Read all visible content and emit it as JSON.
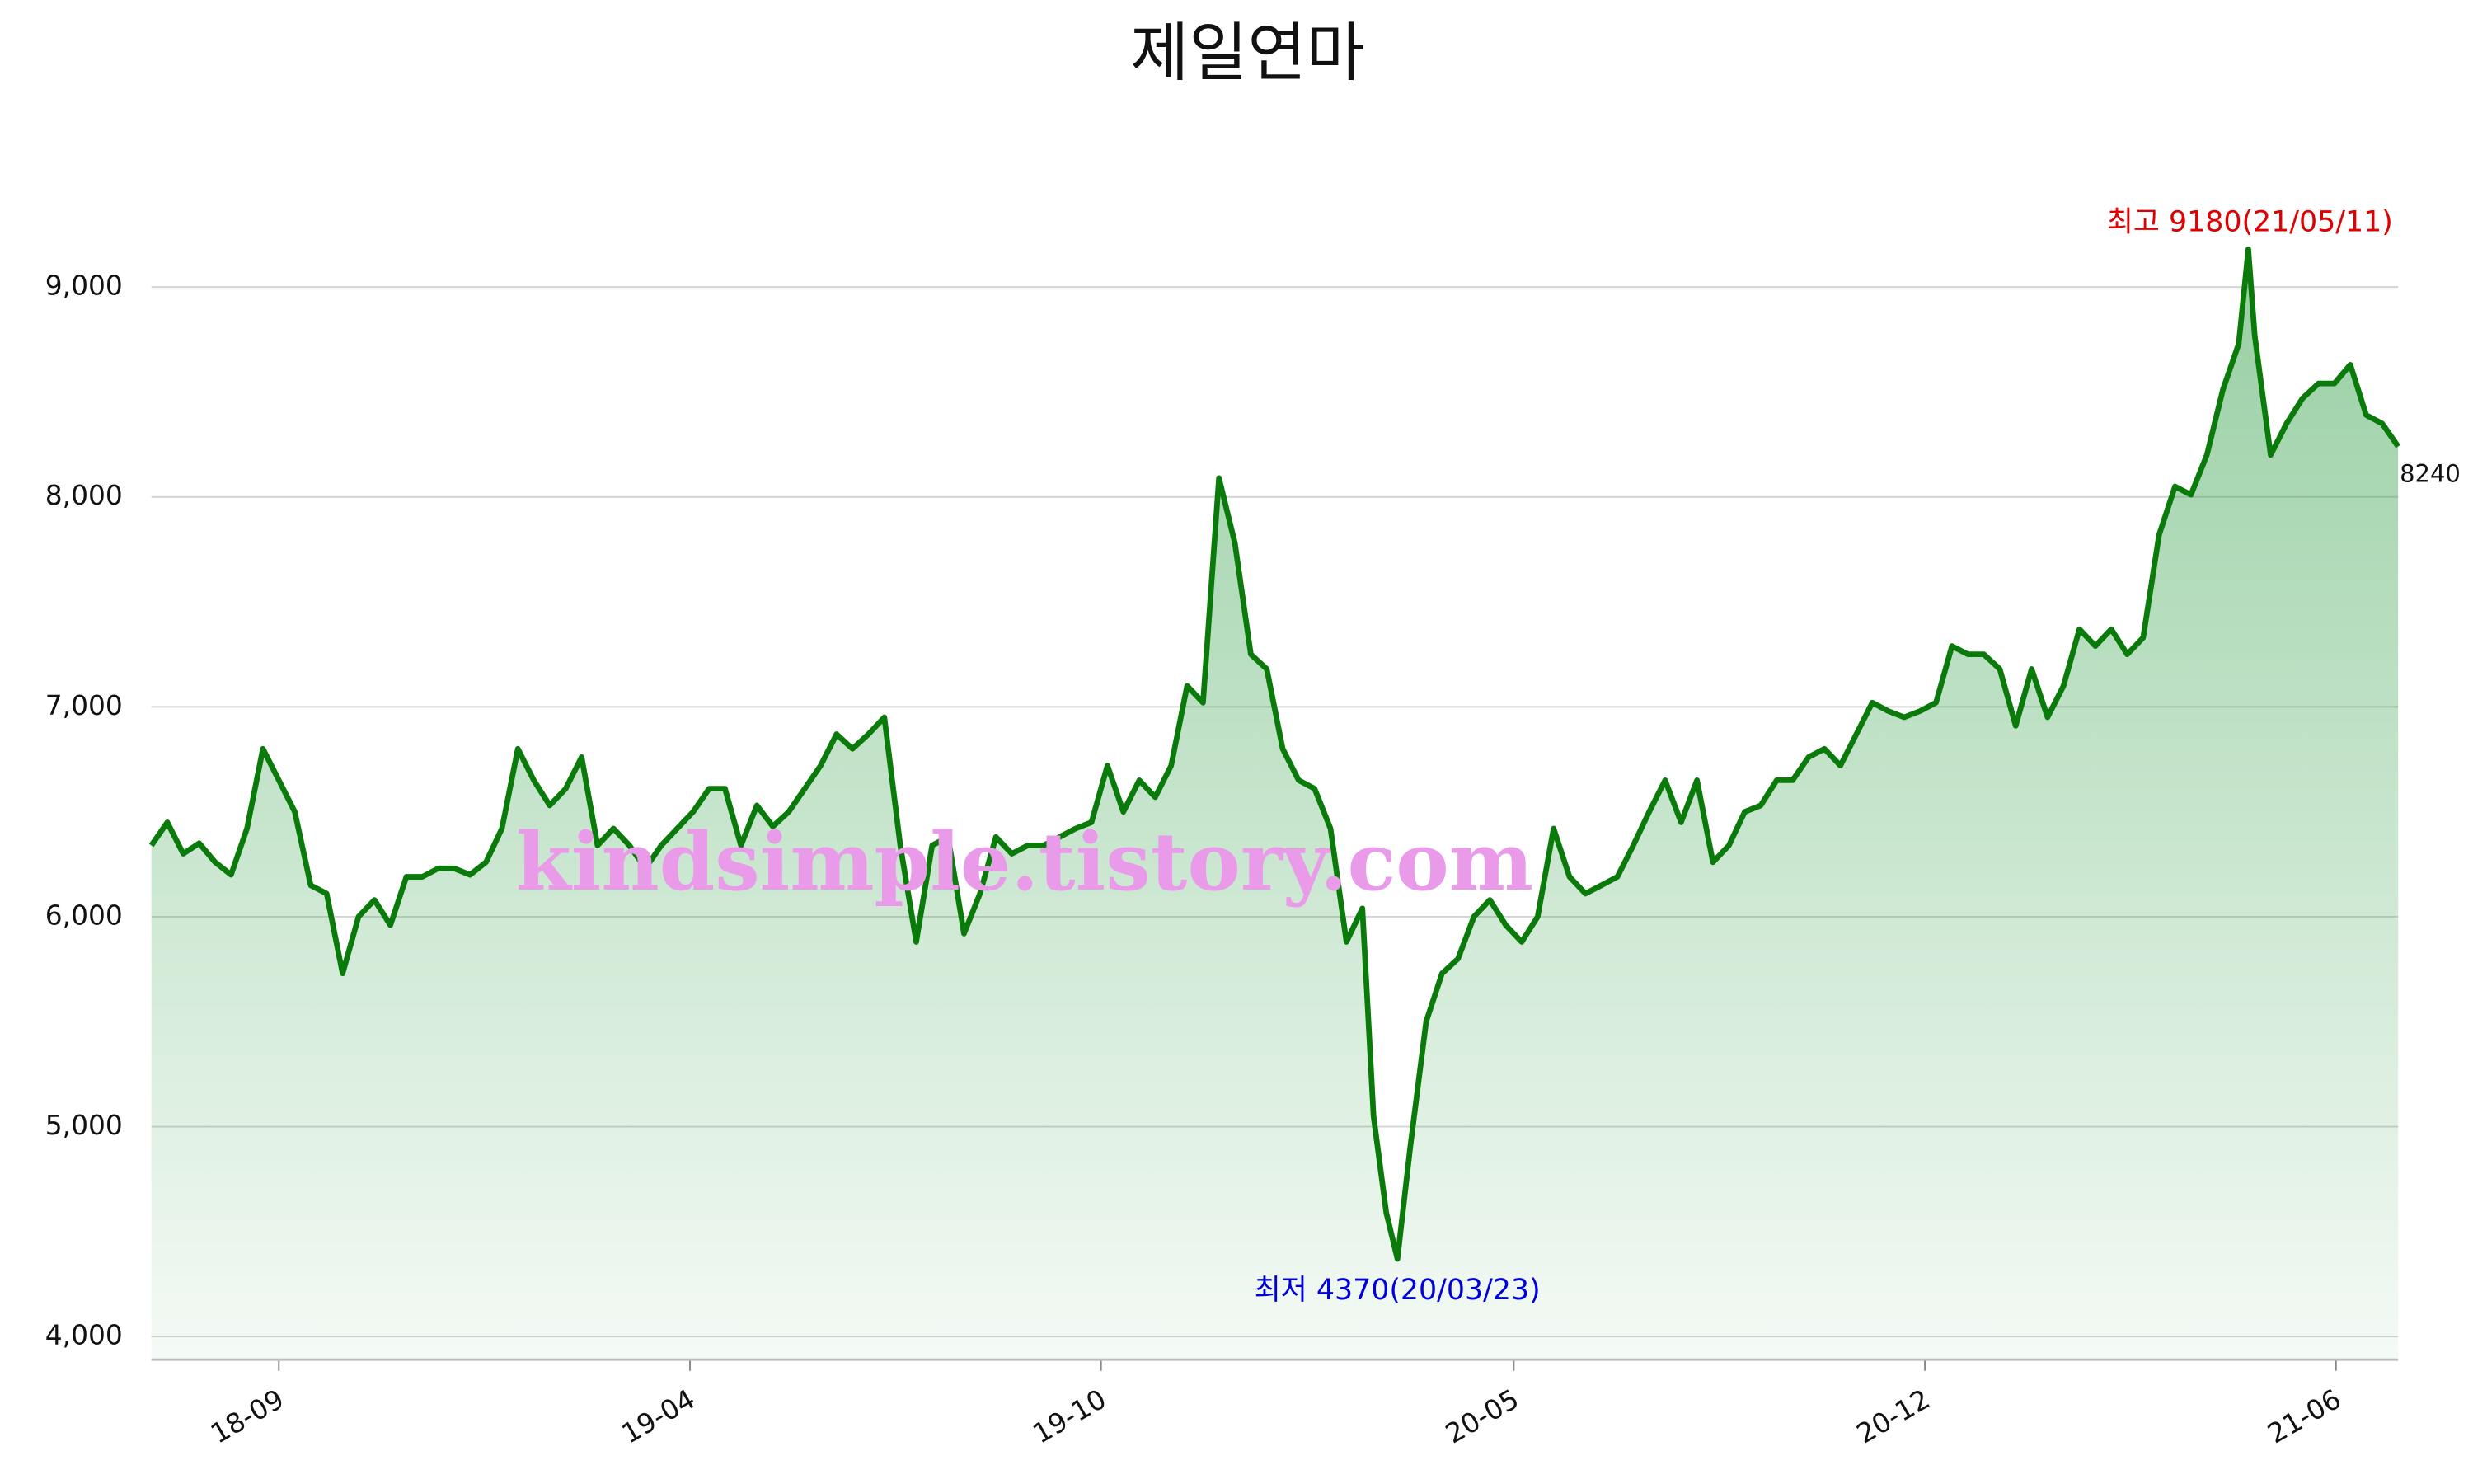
{
  "chart_data": {
    "type": "line",
    "title": "제일연마",
    "x": [
      0,
      1,
      2,
      3,
      4,
      5,
      6,
      7,
      8,
      9,
      10,
      11,
      12,
      13,
      14,
      15,
      16,
      17,
      18,
      19,
      20,
      21,
      22,
      23,
      24,
      25,
      26,
      27,
      28,
      29,
      30,
      31,
      32,
      33,
      34,
      35,
      36,
      37,
      38,
      39,
      40,
      41,
      42,
      43,
      44,
      45,
      46,
      47,
      48,
      49,
      50,
      51,
      52,
      53,
      54,
      55,
      56,
      57,
      58,
      59,
      60,
      61,
      62,
      63,
      64,
      65,
      66,
      67,
      68,
      69,
      70,
      71,
      72,
      73,
      74,
      75,
      76,
      76.7,
      77.5,
      78.2,
      79,
      80,
      81,
      82,
      83,
      84,
      85,
      86,
      87,
      88,
      89,
      90,
      91,
      92,
      93,
      94,
      95,
      96,
      97,
      98,
      99,
      100,
      101,
      102,
      103,
      104,
      105,
      106,
      107,
      108,
      109,
      110,
      111,
      112,
      113,
      114,
      115,
      116,
      117,
      118,
      119,
      120,
      121,
      122,
      123,
      124,
      125,
      126,
      127,
      128,
      129,
      130,
      131,
      131.6,
      132,
      133,
      134,
      135,
      136,
      137,
      138,
      139,
      140,
      141
    ],
    "values": [
      6340,
      6450,
      6300,
      6350,
      6260,
      6200,
      6420,
      6800,
      6650,
      6500,
      6150,
      6110,
      5730,
      6000,
      6080,
      5960,
      6190,
      6190,
      6230,
      6230,
      6200,
      6260,
      6420,
      6800,
      6650,
      6530,
      6610,
      6760,
      6340,
      6420,
      6340,
      6230,
      6340,
      6420,
      6500,
      6610,
      6610,
      6340,
      6530,
      6430,
      6500,
      6610,
      6720,
      6870,
      6800,
      6870,
      6950,
      6340,
      5880,
      6340,
      6380,
      5920,
      6110,
      6380,
      6300,
      6340,
      6340,
      6380,
      6420,
      6450,
      6720,
      6500,
      6650,
      6570,
      6720,
      7100,
      7020,
      8090,
      7780,
      7250,
      7180,
      6800,
      6650,
      6610,
      6420,
      5880,
      6040,
      5050,
      4590,
      4370,
      4900,
      5500,
      5730,
      5800,
      6000,
      6080,
      5960,
      5880,
      6000,
      6420,
      6190,
      6110,
      6150,
      6190,
      6340,
      6500,
      6650,
      6450,
      6650,
      6260,
      6340,
      6500,
      6530,
      6650,
      6650,
      6760,
      6800,
      6720,
      6870,
      7020,
      6980,
      6950,
      6980,
      7020,
      7290,
      7250,
      7250,
      7180,
      6910,
      7180,
      6950,
      7100,
      7370,
      7290,
      7370,
      7250,
      7330,
      7820,
      8050,
      8010,
      8200,
      8510,
      8730,
      9180,
      8770,
      8200,
      8350,
      8470,
      8540,
      8540,
      8630,
      8390,
      8350,
      8240
    ],
    "color": "#0a7a0a",
    "fill_color": "#2e9e45",
    "xlim": [
      0,
      141
    ],
    "xticks": [
      {
        "value": 8,
        "label": "18-09"
      },
      {
        "value": 33.8,
        "label": "19-04"
      },
      {
        "value": 59.6,
        "label": "19-10"
      },
      {
        "value": 85.5,
        "label": "20-05"
      },
      {
        "value": 111.3,
        "label": "20-12"
      },
      {
        "value": 137.1,
        "label": "21-06"
      }
    ],
    "ylim": [
      3890,
      9700
    ],
    "yticks": [
      {
        "value": 4000,
        "label": "4,000"
      },
      {
        "value": 5000,
        "label": "5,000"
      },
      {
        "value": 6000,
        "label": "6,000"
      },
      {
        "value": 7000,
        "label": "7,000"
      },
      {
        "value": 8000,
        "label": "8,000"
      },
      {
        "value": 9000,
        "label": "9,000"
      }
    ],
    "grid": true,
    "annotations": {
      "high": "최고 9180(21/05/11)",
      "low": "최저 4370(20/03/23)",
      "watermark": "kindsimple.tistory.com"
    }
  }
}
